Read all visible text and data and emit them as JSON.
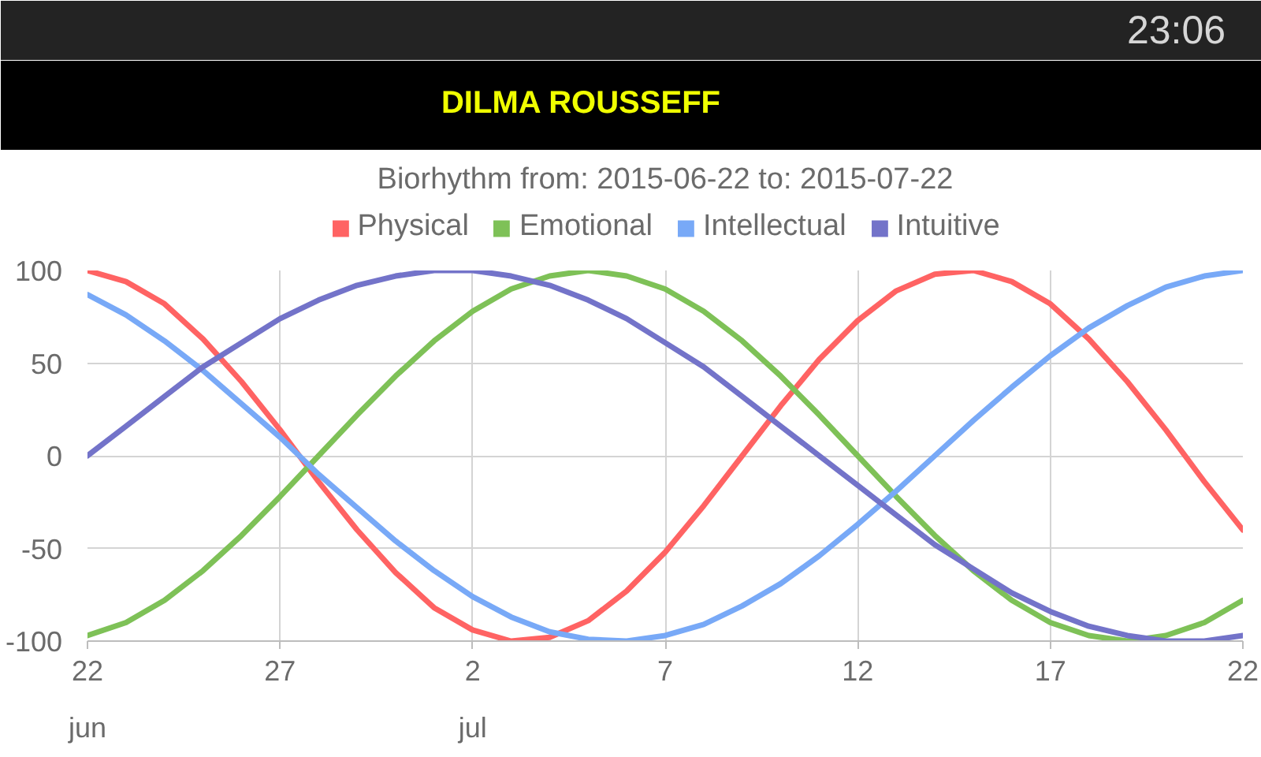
{
  "chart_data": {
    "type": "line",
    "title": "Biorhythm from: 2015-06-22 to: 2015-07-22",
    "subtitle": "DILMA ROUSSEFF",
    "annotations": [
      "23:06"
    ],
    "x": [
      "2015-06-22",
      "2015-06-23",
      "2015-06-24",
      "2015-06-25",
      "2015-06-26",
      "2015-06-27",
      "2015-06-28",
      "2015-06-29",
      "2015-06-30",
      "2015-07-01",
      "2015-07-02",
      "2015-07-03",
      "2015-07-04",
      "2015-07-05",
      "2015-07-06",
      "2015-07-07",
      "2015-07-08",
      "2015-07-09",
      "2015-07-10",
      "2015-07-11",
      "2015-07-12",
      "2015-07-13",
      "2015-07-14",
      "2015-07-15",
      "2015-07-16",
      "2015-07-17",
      "2015-07-18",
      "2015-07-19",
      "2015-07-20",
      "2015-07-21",
      "2015-07-22"
    ],
    "series": [
      {
        "name": "Physical",
        "color": "#ff6363",
        "values": [
          100,
          94,
          82,
          63,
          40,
          14,
          -14,
          -40,
          -63,
          -82,
          -94,
          -100,
          -98,
          -89,
          -73,
          -52,
          -27,
          0,
          27,
          52,
          73,
          89,
          98,
          100,
          94,
          82,
          63,
          40,
          14,
          -14,
          -40
        ]
      },
      {
        "name": "Emotional",
        "color": "#7ec157",
        "values": [
          -97,
          -90,
          -78,
          -62,
          -43,
          -22,
          0,
          22,
          43,
          62,
          78,
          90,
          97,
          100,
          97,
          90,
          78,
          62,
          43,
          22,
          0,
          -22,
          -43,
          -62,
          -78,
          -90,
          -97,
          -100,
          -97,
          -90,
          -78
        ]
      },
      {
        "name": "Intellectual",
        "color": "#78a9f7",
        "values": [
          87,
          76,
          62,
          46,
          28,
          10,
          -10,
          -28,
          -46,
          -62,
          -76,
          -87,
          -95,
          -99,
          -100,
          -97,
          -91,
          -81,
          -69,
          -54,
          -37,
          -19,
          0,
          19,
          37,
          54,
          69,
          81,
          91,
          97,
          100
        ]
      },
      {
        "name": "Intuitive",
        "color": "#7373c9",
        "values": [
          0,
          16,
          32,
          48,
          61,
          74,
          84,
          92,
          97,
          100,
          100,
          97,
          92,
          84,
          74,
          61,
          48,
          32,
          16,
          0,
          -16,
          -32,
          -48,
          -61,
          -74,
          -84,
          -92,
          -97,
          -100,
          -100,
          -97
        ]
      }
    ],
    "xlim": [
      "2015-06-22",
      "2015-07-22"
    ],
    "xticks": [
      {
        "value": "2015-06-22",
        "label": "22\njun"
      },
      {
        "value": "2015-06-27",
        "label": "27"
      },
      {
        "value": "2015-07-02",
        "label": "2\njul"
      },
      {
        "value": "2015-07-07",
        "label": "7"
      },
      {
        "value": "2015-07-12",
        "label": "12"
      },
      {
        "value": "2015-07-17",
        "label": "17"
      },
      {
        "value": "2015-07-22",
        "label": "22"
      }
    ],
    "ylim": [
      -100,
      100
    ],
    "yticks": [
      -100,
      -50,
      0,
      50,
      100
    ],
    "grid": true,
    "legend": "top"
  }
}
